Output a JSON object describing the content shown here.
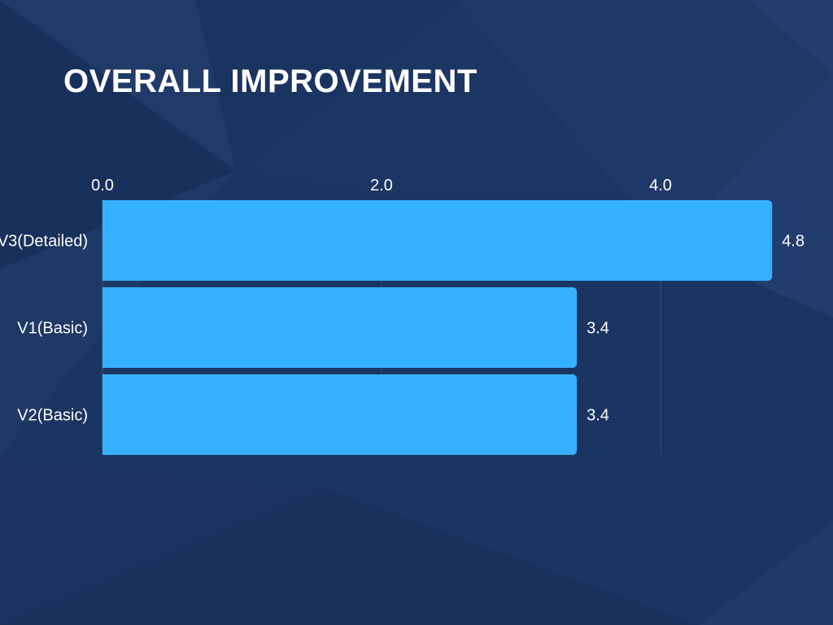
{
  "colors": {
    "background": "#1b3563",
    "bar": "#36b1ff",
    "text": "#ffffff"
  },
  "chart_data": {
    "type": "bar",
    "orientation": "horizontal",
    "title": "OVERALL IMPROVEMENT",
    "categories": [
      "V3(Detailed)",
      "V1(Basic)",
      "V2(Basic)"
    ],
    "values": [
      4.8,
      3.4,
      3.4
    ],
    "data_labels": [
      "4.8",
      "3.4",
      "3.4"
    ],
    "x_ticks": [
      "0.0",
      "2.0",
      "4.0"
    ],
    "x_tick_values": [
      0,
      2,
      4
    ],
    "xlim": [
      0,
      6
    ],
    "xlabel": "",
    "ylabel": "",
    "grid": true,
    "axis_position": "top",
    "legend": "none"
  }
}
